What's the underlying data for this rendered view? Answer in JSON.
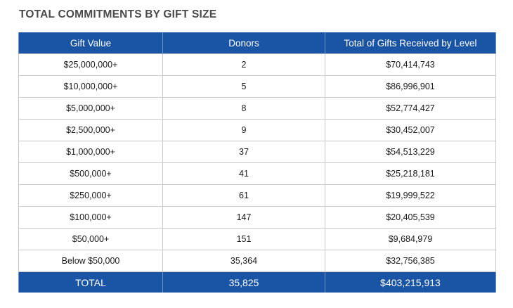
{
  "title": "TOTAL COMMITMENTS BY GIFT SIZE",
  "colors": {
    "header_bg": "#1a55a5",
    "header_text": "#ffffff",
    "title_text": "#4a4a4a"
  },
  "table": {
    "headers": [
      "Gift Value",
      "Donors",
      "Total of Gifts Received by Level"
    ],
    "rows": [
      [
        "$25,000,000+",
        "2",
        "$70,414,743"
      ],
      [
        "$10,000,000+",
        "5",
        "$86,996,901"
      ],
      [
        "$5,000,000+",
        "8",
        "$52,774,427"
      ],
      [
        "$2,500,000+",
        "9",
        "$30,452,007"
      ],
      [
        "$1,000,000+",
        "37",
        "$54,513,229"
      ],
      [
        "$500,000+",
        "41",
        "$25,218,181"
      ],
      [
        "$250,000+",
        "61",
        "$19,999,522"
      ],
      [
        "$100,000+",
        "147",
        "$20,405,539"
      ],
      [
        "$50,000+",
        "151",
        "$9,684,979"
      ],
      [
        "Below $50,000",
        "35,364",
        "$32,756,385"
      ]
    ],
    "total": [
      "TOTAL",
      "35,825",
      "$403,215,913"
    ]
  }
}
